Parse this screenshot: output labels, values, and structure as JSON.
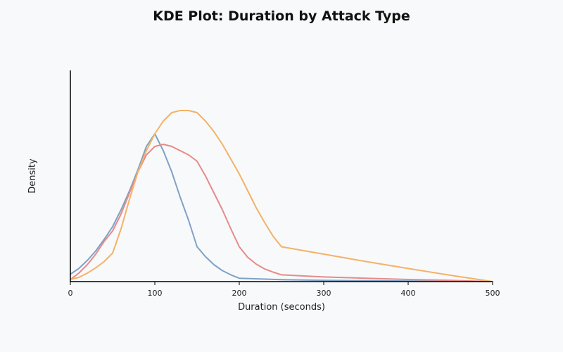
{
  "chart_data": {
    "type": "line",
    "title": "KDE Plot: Duration by Attack Type",
    "xlabel": "Duration (seconds)",
    "ylabel": "Density",
    "xlim": [
      0,
      500
    ],
    "ylim": [
      0,
      1.0
    ],
    "x_ticks": [
      0,
      100,
      200,
      300,
      400,
      500
    ],
    "grid": false,
    "legend": "none",
    "series": [
      {
        "color": "#7fa2c4",
        "x": [
          0,
          10,
          20,
          30,
          40,
          50,
          60,
          70,
          80,
          90,
          100,
          110,
          120,
          130,
          140,
          150,
          160,
          170,
          180,
          190,
          200,
          250,
          300,
          350,
          400,
          450,
          500
        ],
        "y": [
          0.035,
          0.062,
          0.1,
          0.145,
          0.2,
          0.26,
          0.34,
          0.43,
          0.53,
          0.64,
          0.7,
          0.62,
          0.52,
          0.4,
          0.29,
          0.165,
          0.118,
          0.08,
          0.052,
          0.032,
          0.016,
          0.009,
          0.006,
          0.004,
          0.003,
          0.002,
          0.0
        ]
      },
      {
        "color": "#e68b88",
        "x": [
          0,
          10,
          20,
          30,
          40,
          50,
          60,
          70,
          80,
          90,
          100,
          110,
          120,
          130,
          140,
          150,
          160,
          170,
          180,
          190,
          200,
          210,
          220,
          230,
          240,
          250,
          300,
          350,
          400,
          450,
          500
        ],
        "y": [
          0.01,
          0.04,
          0.08,
          0.13,
          0.19,
          0.24,
          0.32,
          0.42,
          0.52,
          0.6,
          0.64,
          0.65,
          0.64,
          0.62,
          0.6,
          0.57,
          0.5,
          0.42,
          0.34,
          0.25,
          0.165,
          0.115,
          0.083,
          0.06,
          0.045,
          0.032,
          0.022,
          0.016,
          0.01,
          0.006,
          0.0
        ]
      },
      {
        "color": "#f4b267",
        "x": [
          0,
          10,
          20,
          30,
          40,
          50,
          60,
          70,
          80,
          90,
          100,
          110,
          120,
          130,
          140,
          150,
          160,
          170,
          180,
          190,
          200,
          210,
          220,
          230,
          240,
          250,
          300,
          350,
          400,
          450,
          500
        ],
        "y": [
          0.01,
          0.02,
          0.04,
          0.065,
          0.095,
          0.135,
          0.25,
          0.39,
          0.52,
          0.62,
          0.7,
          0.76,
          0.8,
          0.81,
          0.81,
          0.8,
          0.76,
          0.71,
          0.65,
          0.58,
          0.51,
          0.43,
          0.35,
          0.28,
          0.215,
          0.165,
          0.13,
          0.095,
          0.062,
          0.03,
          0.0
        ]
      }
    ]
  }
}
